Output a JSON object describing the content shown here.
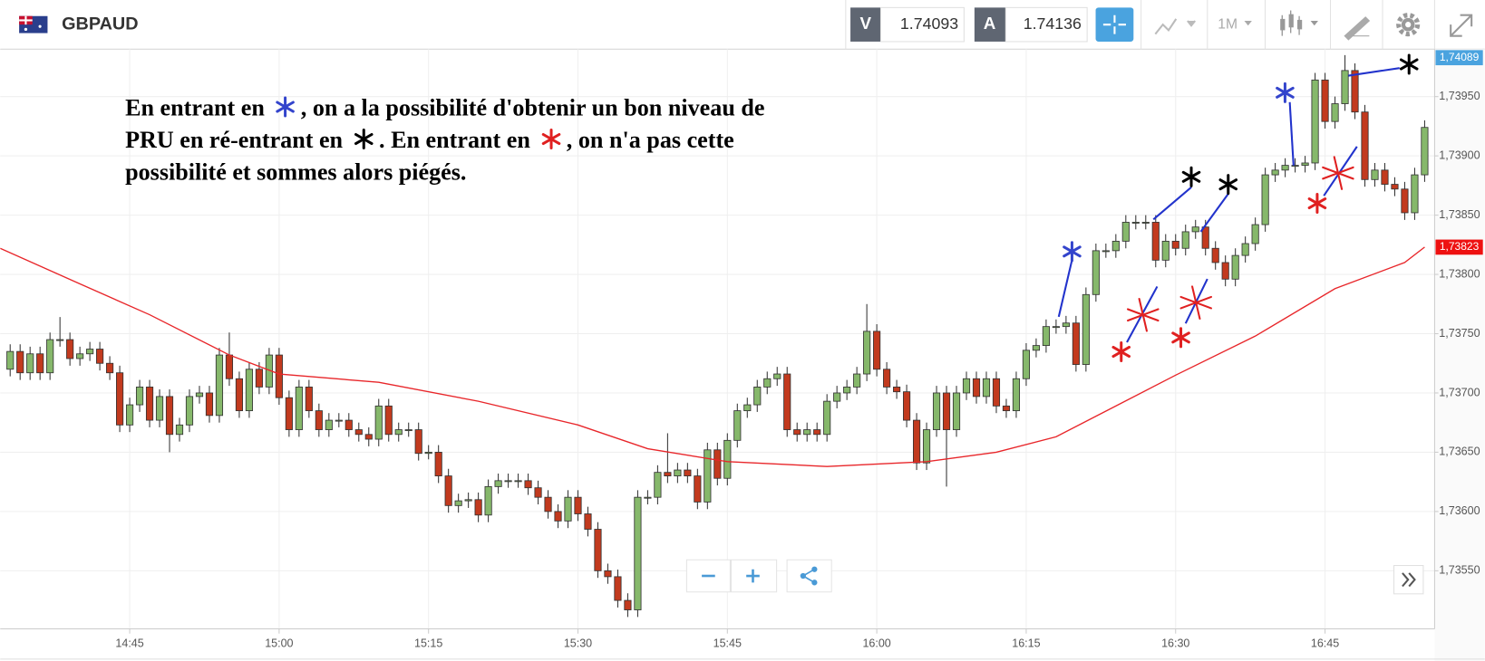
{
  "toolbar": {
    "symbol": "GBPAUD",
    "bid_label": "V",
    "bid": 1.74093,
    "ask_label": "A",
    "ask": 1.74136,
    "timeframe": "1M"
  },
  "annotation": {
    "lines": [
      [
        {
          "text": "En entrant en "
        },
        {
          "star": "#3344cc"
        },
        {
          "text": ", on a la possibilité d'obtenir un bon niveau de"
        }
      ],
      [
        {
          "text": "PRU en ré-entrant en "
        },
        {
          "star": "#000000"
        },
        {
          "text": ". En entrant en "
        },
        {
          "star": "#e02020"
        },
        {
          "text": ", on n'a pas cette"
        }
      ],
      [
        {
          "text": "possibilité et sommes alors piégés."
        }
      ]
    ]
  },
  "chart_data": {
    "type": "candlestick",
    "colors": {
      "up": "#86b86b",
      "down": "#c23a1e"
    },
    "grid": true,
    "x": [
      "14:33",
      "14:34",
      "14:35",
      "14:36",
      "14:37",
      "14:38",
      "14:39",
      "14:40",
      "14:41",
      "14:42",
      "14:43",
      "14:44",
      "14:45",
      "14:46",
      "14:47",
      "14:48",
      "14:49",
      "14:50",
      "14:51",
      "14:52",
      "14:53",
      "14:54",
      "14:55",
      "14:56",
      "14:57",
      "14:58",
      "14:59",
      "15:00",
      "15:01",
      "15:02",
      "15:03",
      "15:04",
      "15:05",
      "15:06",
      "15:07",
      "15:08",
      "15:09",
      "15:10",
      "15:11",
      "15:12",
      "15:13",
      "15:14",
      "15:15",
      "15:16",
      "15:17",
      "15:18",
      "15:19",
      "15:20",
      "15:21",
      "15:22",
      "15:23",
      "15:24",
      "15:25",
      "15:26",
      "15:27",
      "15:28",
      "15:29",
      "15:30",
      "15:31",
      "15:32",
      "15:33",
      "15:34",
      "15:35",
      "15:36",
      "15:37",
      "15:38",
      "15:39",
      "15:40",
      "15:41",
      "15:42",
      "15:43",
      "15:44",
      "15:45",
      "15:46",
      "15:47",
      "15:48",
      "15:49",
      "15:50",
      "15:51",
      "15:52",
      "15:53",
      "15:54",
      "15:55",
      "15:56",
      "15:57",
      "15:58",
      "15:59",
      "16:00",
      "16:01",
      "16:02",
      "16:03",
      "16:04",
      "16:05",
      "16:06",
      "16:07",
      "16:08",
      "16:09",
      "16:10",
      "16:11",
      "16:12",
      "16:13",
      "16:14",
      "16:15",
      "16:16",
      "16:17",
      "16:18",
      "16:19",
      "16:20",
      "16:21",
      "16:22",
      "16:23",
      "16:24",
      "16:25",
      "16:26",
      "16:27",
      "16:28",
      "16:29",
      "16:30",
      "16:31",
      "16:32",
      "16:33",
      "16:34",
      "16:35",
      "16:36",
      "16:37",
      "16:38",
      "16:39",
      "16:40",
      "16:41",
      "16:42",
      "16:43",
      "16:44",
      "16:45",
      "16:46",
      "16:47",
      "16:48",
      "16:49",
      "16:50",
      "16:51",
      "16:52",
      "16:53",
      "16:54",
      "16:55"
    ],
    "ohlc": [
      [
        1.7372,
        1.73741,
        1.73714,
        1.73735
      ],
      [
        1.73735,
        1.73741,
        1.73711,
        1.73717
      ],
      [
        1.73717,
        1.73739,
        1.73711,
        1.73733
      ],
      [
        1.73733,
        1.73739,
        1.73711,
        1.73717
      ],
      [
        1.73717,
        1.73751,
        1.73711,
        1.73745
      ],
      [
        1.73745,
        1.73764,
        1.73739,
        1.73745
      ],
      [
        1.73745,
        1.73751,
        1.73723,
        1.73729
      ],
      [
        1.73729,
        1.73739,
        1.73723,
        1.73733
      ],
      [
        1.73733,
        1.73743,
        1.73727,
        1.73737
      ],
      [
        1.73737,
        1.73743,
        1.73719,
        1.73725
      ],
      [
        1.73725,
        1.73731,
        1.73711,
        1.73717
      ],
      [
        1.73717,
        1.73723,
        1.73667,
        1.73673
      ],
      [
        1.73673,
        1.73696,
        1.73667,
        1.7369
      ],
      [
        1.7369,
        1.73711,
        1.73684,
        1.73705
      ],
      [
        1.73705,
        1.73711,
        1.73671,
        1.73677
      ],
      [
        1.73677,
        1.73703,
        1.73671,
        1.73697
      ],
      [
        1.73697,
        1.73703,
        1.7365,
        1.73665
      ],
      [
        1.73665,
        1.73679,
        1.73659,
        1.73673
      ],
      [
        1.73673,
        1.73703,
        1.73667,
        1.73697
      ],
      [
        1.73697,
        1.73706,
        1.73691,
        1.737
      ],
      [
        1.737,
        1.73706,
        1.73675,
        1.73681
      ],
      [
        1.73681,
        1.73738,
        1.73675,
        1.73732
      ],
      [
        1.73732,
        1.73751,
        1.73706,
        1.73712
      ],
      [
        1.73712,
        1.73718,
        1.73679,
        1.73685
      ],
      [
        1.73685,
        1.73726,
        1.73679,
        1.7372
      ],
      [
        1.7372,
        1.73726,
        1.73699,
        1.73705
      ],
      [
        1.73705,
        1.73738,
        1.73699,
        1.73732
      ],
      [
        1.73732,
        1.73738,
        1.7369,
        1.73696
      ],
      [
        1.73696,
        1.73702,
        1.73663,
        1.73669
      ],
      [
        1.73669,
        1.73711,
        1.73663,
        1.73705
      ],
      [
        1.73705,
        1.73711,
        1.73679,
        1.73685
      ],
      [
        1.73685,
        1.73691,
        1.73663,
        1.73669
      ],
      [
        1.73669,
        1.73683,
        1.73663,
        1.73677
      ],
      [
        1.73677,
        1.73683,
        1.73671,
        1.73677
      ],
      [
        1.73677,
        1.73683,
        1.73663,
        1.73669
      ],
      [
        1.73669,
        1.73675,
        1.73659,
        1.73665
      ],
      [
        1.73665,
        1.73671,
        1.73655,
        1.73661
      ],
      [
        1.73661,
        1.73695,
        1.73655,
        1.73689
      ],
      [
        1.73689,
        1.73695,
        1.73659,
        1.73665
      ],
      [
        1.73665,
        1.73675,
        1.73659,
        1.73669
      ],
      [
        1.73669,
        1.73675,
        1.73663,
        1.73669
      ],
      [
        1.73669,
        1.73675,
        1.73643,
        1.73649
      ],
      [
        1.73649,
        1.73656,
        1.73644,
        1.7365
      ],
      [
        1.7365,
        1.73656,
        1.73624,
        1.7363
      ],
      [
        1.7363,
        1.73636,
        1.73599,
        1.73605
      ],
      [
        1.73605,
        1.73615,
        1.73599,
        1.73609
      ],
      [
        1.73609,
        1.73616,
        1.73603,
        1.7361
      ],
      [
        1.7361,
        1.73616,
        1.73591,
        1.73597
      ],
      [
        1.73597,
        1.73627,
        1.73591,
        1.73621
      ],
      [
        1.73621,
        1.73632,
        1.73615,
        1.73626
      ],
      [
        1.73626,
        1.73632,
        1.7362,
        1.73626
      ],
      [
        1.73626,
        1.73632,
        1.7362,
        1.73626
      ],
      [
        1.73626,
        1.73632,
        1.73614,
        1.7362
      ],
      [
        1.7362,
        1.73626,
        1.73606,
        1.73612
      ],
      [
        1.73612,
        1.73618,
        1.73594,
        1.736
      ],
      [
        1.736,
        1.73606,
        1.73586,
        1.73592
      ],
      [
        1.73592,
        1.73618,
        1.73586,
        1.73612
      ],
      [
        1.73612,
        1.73618,
        1.73592,
        1.73598
      ],
      [
        1.73598,
        1.73604,
        1.73579,
        1.73585
      ],
      [
        1.73585,
        1.73591,
        1.73544,
        1.7355
      ],
      [
        1.7355,
        1.73556,
        1.73539,
        1.73545
      ],
      [
        1.73545,
        1.73551,
        1.73519,
        1.73525
      ],
      [
        1.73525,
        1.73531,
        1.73511,
        1.73517
      ],
      [
        1.73517,
        1.73618,
        1.73511,
        1.73612
      ],
      [
        1.73612,
        1.73618,
        1.73606,
        1.73612
      ],
      [
        1.73612,
        1.73639,
        1.73606,
        1.73633
      ],
      [
        1.73633,
        1.73666,
        1.73624,
        1.7363
      ],
      [
        1.7363,
        1.73641,
        1.73624,
        1.73635
      ],
      [
        1.73635,
        1.73641,
        1.73624,
        1.7363
      ],
      [
        1.7363,
        1.73636,
        1.73602,
        1.73608
      ],
      [
        1.73608,
        1.73658,
        1.73602,
        1.73652
      ],
      [
        1.73652,
        1.73658,
        1.73622,
        1.73628
      ],
      [
        1.73628,
        1.73666,
        1.73622,
        1.7366
      ],
      [
        1.7366,
        1.73691,
        1.73654,
        1.73685
      ],
      [
        1.73685,
        1.73696,
        1.73679,
        1.7369
      ],
      [
        1.7369,
        1.73711,
        1.73684,
        1.73705
      ],
      [
        1.73705,
        1.73718,
        1.73699,
        1.73712
      ],
      [
        1.73712,
        1.73722,
        1.73706,
        1.73716
      ],
      [
        1.73716,
        1.73722,
        1.73663,
        1.73669
      ],
      [
        1.73669,
        1.73675,
        1.73659,
        1.73665
      ],
      [
        1.73665,
        1.73675,
        1.73659,
        1.73669
      ],
      [
        1.73669,
        1.73675,
        1.73659,
        1.73665
      ],
      [
        1.73665,
        1.73699,
        1.73659,
        1.73693
      ],
      [
        1.73693,
        1.73706,
        1.73687,
        1.737
      ],
      [
        1.737,
        1.73711,
        1.73694,
        1.73705
      ],
      [
        1.73705,
        1.73722,
        1.73699,
        1.73716
      ],
      [
        1.73716,
        1.73775,
        1.7371,
        1.73752
      ],
      [
        1.73752,
        1.73758,
        1.73714,
        1.7372
      ],
      [
        1.7372,
        1.73726,
        1.73699,
        1.73705
      ],
      [
        1.73705,
        1.73711,
        1.73695,
        1.73701
      ],
      [
        1.73701,
        1.73707,
        1.73671,
        1.73677
      ],
      [
        1.73677,
        1.73683,
        1.73635,
        1.73641
      ],
      [
        1.73641,
        1.73675,
        1.73635,
        1.73669
      ],
      [
        1.73669,
        1.73706,
        1.73663,
        1.737
      ],
      [
        1.737,
        1.73706,
        1.73621,
        1.73669
      ],
      [
        1.73669,
        1.73706,
        1.73663,
        1.737
      ],
      [
        1.737,
        1.73718,
        1.73694,
        1.73712
      ],
      [
        1.73712,
        1.73718,
        1.73691,
        1.73697
      ],
      [
        1.73697,
        1.73718,
        1.73691,
        1.73712
      ],
      [
        1.73712,
        1.73718,
        1.73683,
        1.73689
      ],
      [
        1.73689,
        1.73695,
        1.73679,
        1.73685
      ],
      [
        1.73685,
        1.73718,
        1.73679,
        1.73712
      ],
      [
        1.73712,
        1.73742,
        1.73706,
        1.73736
      ],
      [
        1.73736,
        1.73746,
        1.7373,
        1.7374
      ],
      [
        1.7374,
        1.73762,
        1.73734,
        1.73756
      ],
      [
        1.73756,
        1.73762,
        1.7375,
        1.73756
      ],
      [
        1.73756,
        1.73765,
        1.7375,
        1.73759
      ],
      [
        1.73759,
        1.73765,
        1.73718,
        1.73724
      ],
      [
        1.73724,
        1.73789,
        1.73718,
        1.73783
      ],
      [
        1.73783,
        1.73826,
        1.73777,
        1.7382
      ],
      [
        1.7382,
        1.73826,
        1.73814,
        1.7382
      ],
      [
        1.7382,
        1.73834,
        1.73814,
        1.73828
      ],
      [
        1.73828,
        1.7385,
        1.73822,
        1.73844
      ],
      [
        1.73844,
        1.7385,
        1.73838,
        1.73844
      ],
      [
        1.73844,
        1.7385,
        1.73838,
        1.73844
      ],
      [
        1.73844,
        1.7385,
        1.73806,
        1.73812
      ],
      [
        1.73812,
        1.73834,
        1.73806,
        1.73828
      ],
      [
        1.73828,
        1.73834,
        1.73816,
        1.73822
      ],
      [
        1.73822,
        1.73842,
        1.73816,
        1.73836
      ],
      [
        1.73836,
        1.73846,
        1.7383,
        1.7384
      ],
      [
        1.7384,
        1.73846,
        1.73816,
        1.73822
      ],
      [
        1.73822,
        1.73828,
        1.73804,
        1.7381
      ],
      [
        1.7381,
        1.73816,
        1.7379,
        1.73796
      ],
      [
        1.73796,
        1.73822,
        1.7379,
        1.73816
      ],
      [
        1.73816,
        1.73832,
        1.7381,
        1.73826
      ],
      [
        1.73826,
        1.73848,
        1.7382,
        1.73842
      ],
      [
        1.73842,
        1.7389,
        1.73836,
        1.73884
      ],
      [
        1.73884,
        1.73894,
        1.73878,
        1.73888
      ],
      [
        1.73888,
        1.73898,
        1.73882,
        1.73892
      ],
      [
        1.73892,
        1.73898,
        1.73886,
        1.73892
      ],
      [
        1.73892,
        1.739,
        1.73886,
        1.73894
      ],
      [
        1.73894,
        1.7397,
        1.73888,
        1.73964
      ],
      [
        1.73964,
        1.7397,
        1.73923,
        1.73929
      ],
      [
        1.73929,
        1.7395,
        1.73923,
        1.73944
      ],
      [
        1.73944,
        1.73985,
        1.73938,
        1.73972
      ],
      [
        1.73972,
        1.73978,
        1.73931,
        1.73937
      ],
      [
        1.73937,
        1.73943,
        1.73874,
        1.7388
      ],
      [
        1.7388,
        1.73894,
        1.73874,
        1.73888
      ],
      [
        1.73888,
        1.73894,
        1.7387,
        1.73876
      ],
      [
        1.73876,
        1.73882,
        1.73866,
        1.73872
      ],
      [
        1.73872,
        1.73878,
        1.73846,
        1.73852
      ],
      [
        1.73852,
        1.7389,
        1.73846,
        1.73884
      ],
      [
        1.73884,
        1.7393,
        1.73878,
        1.73924
      ]
    ],
    "ma": {
      "color": "#e8262a",
      "x": [
        "14:32",
        "14:40",
        "14:47",
        "14:55",
        "15:00",
        "15:10",
        "15:20",
        "15:30",
        "15:37",
        "15:45",
        "15:55",
        "16:05",
        "16:12",
        "16:18",
        "16:24",
        "16:30",
        "16:38",
        "16:46",
        "16:53",
        "16:55"
      ],
      "values": [
        1.73822,
        1.73792,
        1.73766,
        1.73732,
        1.73716,
        1.73709,
        1.73693,
        1.73673,
        1.73653,
        1.73642,
        1.73638,
        1.73642,
        1.7365,
        1.73663,
        1.73689,
        1.73715,
        1.73748,
        1.73788,
        1.7381,
        1.73823
      ]
    },
    "xlim": [
      "14:32",
      "16:56"
    ],
    "xticks": [
      "14:45",
      "15:00",
      "15:15",
      "15:30",
      "15:45",
      "16:00",
      "16:15",
      "16:30",
      "16:45"
    ],
    "ylim": [
      1.73501,
      1.7399
    ],
    "yticks": [
      {
        "value": 1.7355,
        "label": "1,73550"
      },
      {
        "value": 1.736,
        "label": "1,73600"
      },
      {
        "value": 1.7365,
        "label": "1,73650"
      },
      {
        "value": 1.737,
        "label": "1,73700"
      },
      {
        "value": 1.7375,
        "label": "1,73750"
      },
      {
        "value": 1.738,
        "label": "1,73800"
      },
      {
        "value": 1.7385,
        "label": "1,73850"
      },
      {
        "value": 1.739,
        "label": "1,73900"
      },
      {
        "value": 1.7395,
        "label": "1,73950"
      }
    ],
    "price_tags": [
      {
        "value": 1.74089,
        "label": "1,74089",
        "color": "#4aa3df"
      },
      {
        "value": 1.73823,
        "label": "1,73823",
        "color": "#ee1111"
      }
    ]
  }
}
